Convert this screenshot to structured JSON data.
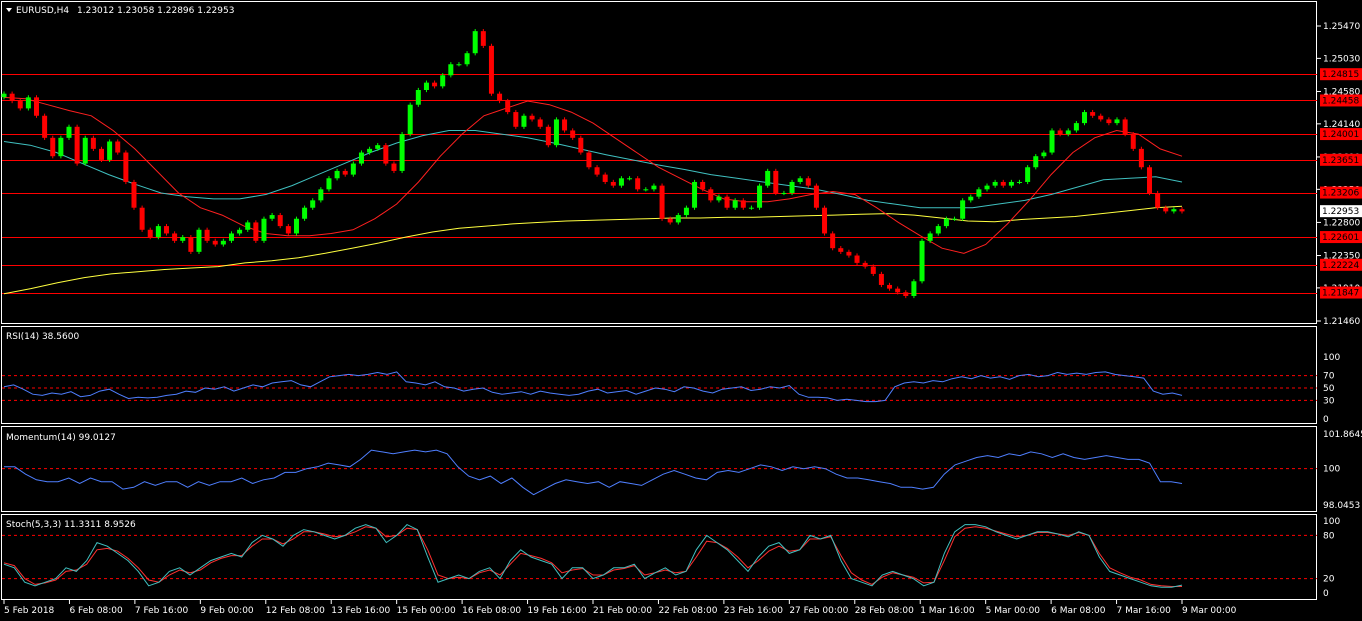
{
  "header": {
    "symbol": "EURUSD,H4",
    "ohlc": "1.23012 1.23058 1.22896 1.22953"
  },
  "colors": {
    "background": "#000000",
    "bull": "#00ff00",
    "bear": "#ff0000",
    "grid": "#ffffff",
    "ma_fast": "#ff2020",
    "ma_mid": "#40c0c0",
    "ma_slow": "#ffff40",
    "indicator": "#4f7fff",
    "stoch_signal": "#ff3030",
    "stoch_main": "#40c0c0"
  },
  "chart_data": [
    {
      "type": "candlestick",
      "title": "EURUSD,H4",
      "ylim": [
        1.2146,
        1.2547
      ],
      "price_ticks": [
        "1.25470",
        "1.25030",
        "1.24580",
        "1.24140",
        "1.23690",
        "1.23250",
        "1.22800",
        "1.22350",
        "1.21910",
        "1.21460"
      ],
      "current_price": "1.22953",
      "levels": [
        {
          "label": "1.24815",
          "value": 1.24815
        },
        {
          "label": "1.24458",
          "value": 1.24458
        },
        {
          "label": "1.24001",
          "value": 1.24001
        },
        {
          "label": "1.23651",
          "value": 1.23651
        },
        {
          "label": "1.23206",
          "value": 1.23206
        },
        {
          "label": "1.22601",
          "value": 1.22601
        },
        {
          "label": "1.22224",
          "value": 1.22224
        },
        {
          "label": "1.21847",
          "value": 1.21847
        }
      ],
      "x_labels": [
        "5 Feb 2018",
        "6 Feb 08:00",
        "7 Feb 16:00",
        "9 Feb 00:00",
        "12 Feb 08:00",
        "13 Feb 16:00",
        "15 Feb 00:00",
        "16 Feb 08:00",
        "19 Feb 16:00",
        "21 Feb 00:00",
        "22 Feb 08:00",
        "23 Feb 16:00",
        "27 Feb 00:00",
        "28 Feb 08:00",
        "1 Mar 16:00",
        "5 Mar 00:00",
        "6 Mar 08:00",
        "7 Mar 16:00",
        "9 Mar 00:00"
      ],
      "closes": [
        1.2455,
        1.2445,
        1.2435,
        1.245,
        1.2425,
        1.2395,
        1.237,
        1.2395,
        1.241,
        1.236,
        1.2395,
        1.238,
        1.2365,
        1.239,
        1.2375,
        1.2335,
        1.23,
        1.227,
        1.226,
        1.2275,
        1.2265,
        1.2255,
        1.226,
        1.224,
        1.227,
        1.2255,
        1.225,
        1.2255,
        1.2265,
        1.227,
        1.228,
        1.2255,
        1.2285,
        1.229,
        1.2275,
        1.2265,
        1.2285,
        1.23,
        1.231,
        1.2325,
        1.234,
        1.235,
        1.2345,
        1.236,
        1.2375,
        1.238,
        1.2385,
        1.236,
        1.235,
        1.24,
        1.244,
        1.246,
        1.247,
        1.2465,
        1.248,
        1.2495,
        1.2495,
        1.251,
        1.254,
        1.252,
        1.2455,
        1.2445,
        1.243,
        1.241,
        1.2425,
        1.242,
        1.241,
        1.2385,
        1.242,
        1.2405,
        1.2395,
        1.2375,
        1.2355,
        1.2345,
        1.2335,
        1.233,
        1.234,
        1.234,
        1.2325,
        1.2325,
        1.233,
        1.2285,
        1.228,
        1.229,
        1.23,
        1.2335,
        1.2325,
        1.231,
        1.2315,
        1.23,
        1.231,
        1.23,
        1.23,
        1.233,
        1.235,
        1.232,
        1.232,
        1.2335,
        1.234,
        1.233,
        1.23,
        1.2265,
        1.2245,
        1.224,
        1.2235,
        1.2225,
        1.222,
        1.221,
        1.2195,
        1.219,
        1.2185,
        1.218,
        1.22,
        1.2255,
        1.2265,
        1.2275,
        1.2285,
        1.2285,
        1.231,
        1.2315,
        1.2325,
        1.233,
        1.2335,
        1.233,
        1.2335,
        1.2335,
        1.2355,
        1.237,
        1.2375,
        1.2405,
        1.24,
        1.2405,
        1.2415,
        1.243,
        1.2425,
        1.242,
        1.2415,
        1.242,
        1.24,
        1.238,
        1.2355,
        1.232,
        1.23,
        1.2295,
        1.2298,
        1.2295
      ],
      "ma_fast": [
        1.245,
        1.2448,
        1.244,
        1.2432,
        1.2425,
        1.2405,
        1.238,
        1.235,
        1.232,
        1.23,
        1.229,
        1.2275,
        1.2265,
        1.2262,
        1.2262,
        1.2265,
        1.227,
        1.2285,
        1.2305,
        1.2335,
        1.237,
        1.24,
        1.2425,
        1.2435,
        1.2445,
        1.244,
        1.243,
        1.2415,
        1.2395,
        1.2375,
        1.2355,
        1.234,
        1.2325,
        1.2312,
        1.2308,
        1.2308,
        1.2312,
        1.2318,
        1.2322,
        1.2318,
        1.23,
        1.228,
        1.2262,
        1.2245,
        1.2238,
        1.225,
        1.2278,
        1.231,
        1.2345,
        1.2375,
        1.2395,
        1.2405,
        1.24,
        1.238,
        1.237
      ],
      "ma_mid": [
        1.239,
        1.2385,
        1.2375,
        1.236,
        1.2345,
        1.2332,
        1.232,
        1.2315,
        1.2312,
        1.2312,
        1.2318,
        1.233,
        1.2345,
        1.236,
        1.2375,
        1.2388,
        1.2398,
        1.2405,
        1.2405,
        1.24,
        1.2395,
        1.2388,
        1.238,
        1.2372,
        1.2365,
        1.2358,
        1.2352,
        1.2345,
        1.234,
        1.2335,
        1.233,
        1.2325,
        1.2318,
        1.231,
        1.2305,
        1.23,
        1.23,
        1.23,
        1.2305,
        1.231,
        1.2318,
        1.2328,
        1.2338,
        1.234,
        1.2342,
        1.2335
      ],
      "ma_slow": [
        1.2183,
        1.219,
        1.2198,
        1.2205,
        1.221,
        1.2213,
        1.2216,
        1.2218,
        1.222,
        1.2225,
        1.2228,
        1.2232,
        1.2238,
        1.2245,
        1.2252,
        1.226,
        1.2267,
        1.2272,
        1.2275,
        1.2278,
        1.228,
        1.2282,
        1.2283,
        1.2284,
        1.2285,
        1.2286,
        1.2286,
        1.2287,
        1.2287,
        1.2288,
        1.2289,
        1.229,
        1.2291,
        1.2292,
        1.229,
        1.2286,
        1.2282,
        1.2281,
        1.2284,
        1.2286,
        1.2288,
        1.2292,
        1.2296,
        1.23,
        1.2302
      ]
    },
    {
      "type": "line",
      "title": "RSI(14) 38.5600",
      "ylim": [
        0,
        100
      ],
      "ticks": [
        "100",
        "70",
        "50",
        "30",
        "0"
      ],
      "levels": [
        70,
        50,
        30
      ],
      "values": [
        52,
        55,
        48,
        40,
        38,
        42,
        40,
        44,
        36,
        38,
        45,
        48,
        40,
        33,
        35,
        34,
        35,
        38,
        40,
        45,
        43,
        50,
        48,
        52,
        45,
        50,
        55,
        52,
        58,
        60,
        62,
        55,
        52,
        60,
        68,
        70,
        72,
        70,
        72,
        75,
        72,
        76,
        60,
        58,
        55,
        60,
        52,
        50,
        45,
        48,
        50,
        43,
        40,
        42,
        44,
        40,
        45,
        42,
        40,
        38,
        40,
        45,
        48,
        42,
        44,
        46,
        40,
        45,
        50,
        48,
        44,
        52,
        50,
        45,
        42,
        48,
        50,
        52,
        46,
        48,
        52,
        50,
        54,
        40,
        35,
        35,
        34,
        30,
        32,
        30,
        28,
        28,
        30,
        52,
        58,
        60,
        58,
        62,
        60,
        65,
        68,
        65,
        70,
        66,
        68,
        64,
        70,
        72,
        68,
        70,
        75,
        72,
        74,
        72,
        75,
        76,
        72,
        70,
        68,
        66,
        45,
        40,
        42,
        38
      ]
    },
    {
      "type": "line",
      "title": "Momentum(14) 99.0127",
      "ylim": [
        98.0453,
        101.8645
      ],
      "ticks": [
        "101.8645",
        "100",
        "98.0453"
      ],
      "levels": [
        100
      ],
      "values": [
        100.1,
        100.1,
        99.7,
        99.4,
        99.3,
        99.3,
        99.5,
        99.2,
        99.5,
        99.3,
        99.3,
        98.9,
        99.0,
        99.3,
        99.1,
        99.3,
        99.3,
        99.0,
        99.3,
        99.1,
        99.3,
        99.3,
        99.5,
        99.2,
        99.4,
        99.5,
        99.8,
        99.8,
        100.0,
        100.1,
        100.3,
        100.2,
        100.1,
        100.5,
        101.0,
        100.9,
        100.8,
        100.9,
        101.0,
        100.9,
        101.0,
        100.8,
        100.1,
        99.6,
        99.4,
        99.6,
        99.2,
        99.5,
        99.0,
        98.6,
        98.9,
        99.2,
        99.4,
        99.3,
        99.2,
        99.3,
        99.0,
        99.3,
        99.2,
        99.1,
        99.4,
        99.7,
        99.9,
        99.7,
        99.5,
        99.4,
        99.8,
        99.9,
        99.8,
        100.0,
        100.2,
        100.1,
        99.9,
        100.1,
        100.0,
        100.1,
        100.0,
        99.7,
        99.5,
        99.5,
        99.4,
        99.3,
        99.2,
        99.0,
        99.0,
        98.9,
        99.0,
        99.7,
        100.2,
        100.4,
        100.6,
        100.7,
        100.6,
        100.8,
        100.7,
        100.9,
        100.8,
        100.6,
        100.8,
        100.6,
        100.5,
        100.6,
        100.7,
        100.6,
        100.5,
        100.5,
        100.3,
        99.3,
        99.3,
        99.2
      ]
    },
    {
      "type": "line",
      "title": "Stoch(5,3,3) 11.3311 8.9526",
      "ylim": [
        0,
        100
      ],
      "ticks": [
        "100",
        "80",
        "20",
        "0"
      ],
      "levels": [
        80,
        20
      ],
      "main": [
        40,
        35,
        15,
        10,
        15,
        20,
        35,
        30,
        45,
        70,
        65,
        55,
        45,
        30,
        10,
        15,
        30,
        35,
        25,
        35,
        45,
        50,
        55,
        50,
        70,
        80,
        75,
        65,
        80,
        88,
        85,
        80,
        75,
        80,
        90,
        95,
        90,
        70,
        80,
        95,
        88,
        50,
        15,
        20,
        25,
        20,
        30,
        35,
        20,
        45,
        60,
        50,
        45,
        40,
        20,
        35,
        35,
        20,
        25,
        35,
        35,
        40,
        20,
        28,
        35,
        25,
        30,
        60,
        80,
        70,
        60,
        45,
        30,
        50,
        65,
        70,
        55,
        60,
        80,
        75,
        80,
        45,
        20,
        15,
        10,
        25,
        30,
        25,
        20,
        10,
        15,
        55,
        85,
        95,
        95,
        92,
        85,
        80,
        75,
        80,
        85,
        85,
        82,
        78,
        85,
        80,
        50,
        30,
        25,
        20,
        15,
        10,
        8,
        8,
        11
      ],
      "signal": [
        42,
        38,
        20,
        12,
        14,
        18,
        30,
        32,
        40,
        60,
        62,
        58,
        48,
        35,
        18,
        15,
        25,
        32,
        28,
        32,
        42,
        48,
        52,
        52,
        65,
        75,
        75,
        68,
        75,
        85,
        85,
        82,
        78,
        80,
        85,
        92,
        90,
        78,
        80,
        90,
        88,
        60,
        25,
        20,
        22,
        20,
        28,
        32,
        25,
        40,
        55,
        52,
        48,
        42,
        28,
        32,
        34,
        25,
        25,
        32,
        34,
        38,
        25,
        28,
        32,
        28,
        30,
        50,
        72,
        70,
        62,
        50,
        35,
        45,
        58,
        65,
        58,
        60,
        75,
        75,
        78,
        52,
        28,
        18,
        12,
        22,
        28,
        25,
        22,
        14,
        15,
        45,
        78,
        90,
        92,
        90,
        86,
        82,
        78,
        80,
        84,
        84,
        82,
        80,
        84,
        80,
        55,
        35,
        28,
        22,
        18,
        12,
        10,
        9,
        9
      ]
    }
  ]
}
